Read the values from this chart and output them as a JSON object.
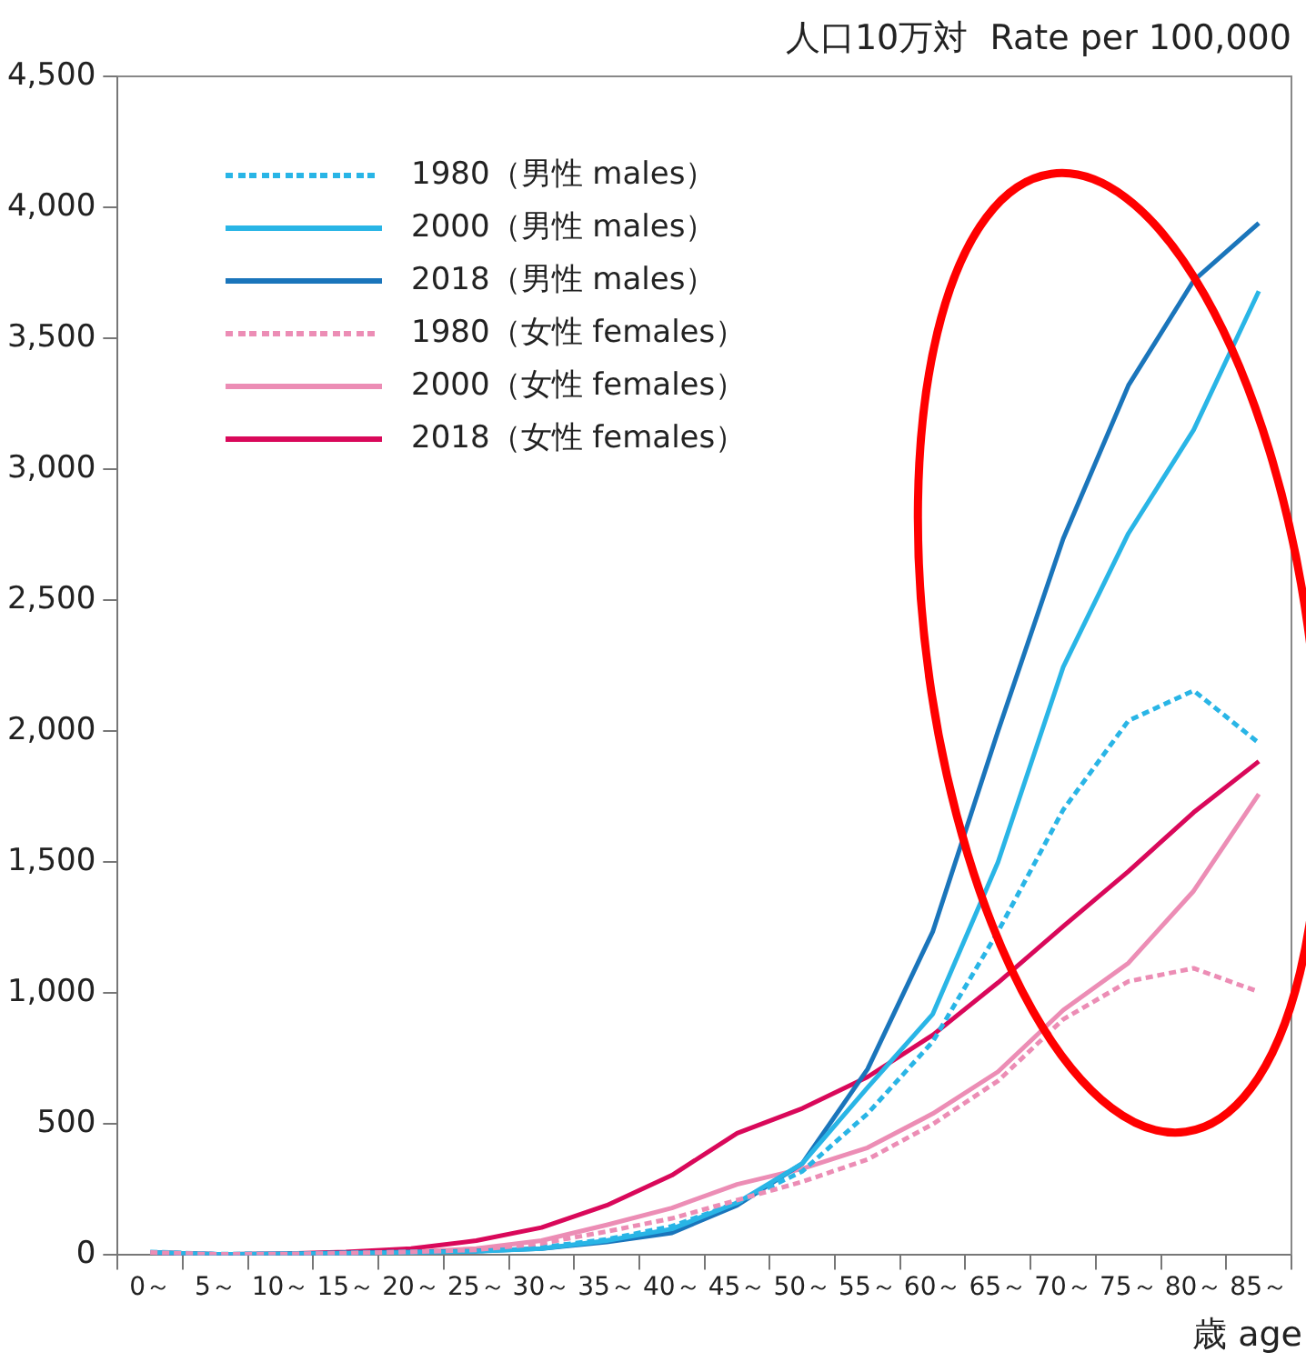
{
  "chart_data": {
    "type": "line",
    "ylabel": "人口10万対  Rate per 100,000",
    "xlabel": "歳 age",
    "categories": [
      "0～",
      "5～",
      "10～",
      "15～",
      "20～",
      "25～",
      "30～",
      "35～",
      "40～",
      "45～",
      "50～",
      "55～",
      "60～",
      "65～",
      "70～",
      "75～",
      "80～",
      "85～"
    ],
    "series": [
      {
        "name": "1980（男性 males）",
        "color": "#29b5e6",
        "line_style": "dashed",
        "values": [
          12,
          4,
          5,
          8,
          12,
          15,
          30,
          60,
          110,
          200,
          320,
          540,
          815,
          1235,
          1700,
          2040,
          2155,
          1955
        ]
      },
      {
        "name": "2000（男性 males）",
        "color": "#29b5e6",
        "line_style": "solid",
        "values": [
          10,
          3,
          4,
          7,
          10,
          14,
          25,
          55,
          100,
          200,
          350,
          640,
          920,
          1500,
          2245,
          2755,
          3150,
          3680
        ]
      },
      {
        "name": "2018（男性 males）",
        "color": "#1a75bb",
        "line_style": "solid",
        "values": [
          10,
          3,
          5,
          8,
          12,
          15,
          25,
          50,
          85,
          190,
          350,
          710,
          1235,
          2000,
          2735,
          3320,
          3720,
          3940
        ]
      },
      {
        "name": "1980（女性 females）",
        "color": "#ec8db5",
        "line_style": "dashed",
        "values": [
          10,
          3,
          4,
          7,
          12,
          20,
          45,
          90,
          140,
          210,
          280,
          365,
          500,
          665,
          900,
          1045,
          1095,
          1005
        ]
      },
      {
        "name": "2000（女性 females）",
        "color": "#ec8db5",
        "line_style": "solid",
        "values": [
          10,
          3,
          4,
          7,
          12,
          25,
          55,
          115,
          180,
          270,
          330,
          410,
          540,
          700,
          935,
          1115,
          1390,
          1760
        ]
      },
      {
        "name": "2018（女性 females）",
        "color": "#d9085a",
        "line_style": "solid",
        "values": [
          10,
          3,
          5,
          12,
          25,
          55,
          105,
          190,
          305,
          465,
          560,
          680,
          840,
          1040,
          1255,
          1465,
          1690,
          1885
        ]
      }
    ],
    "ylim": [
      0,
      4500
    ],
    "yticks": [
      0,
      500,
      {
        "value": 1000,
        "label": "1,000"
      },
      {
        "value": 1500,
        "label": "1,500"
      },
      {
        "value": 2000,
        "label": "2,000"
      },
      {
        "value": 2500,
        "label": "2,500"
      },
      {
        "value": 3000,
        "label": "3,000"
      },
      {
        "value": 3500,
        "label": "3,500"
      },
      {
        "value": 4000,
        "label": "4,000"
      },
      {
        "value": 4500,
        "label": "4,500"
      }
    ],
    "grid": false,
    "legend": "top left",
    "marker": "none"
  }
}
